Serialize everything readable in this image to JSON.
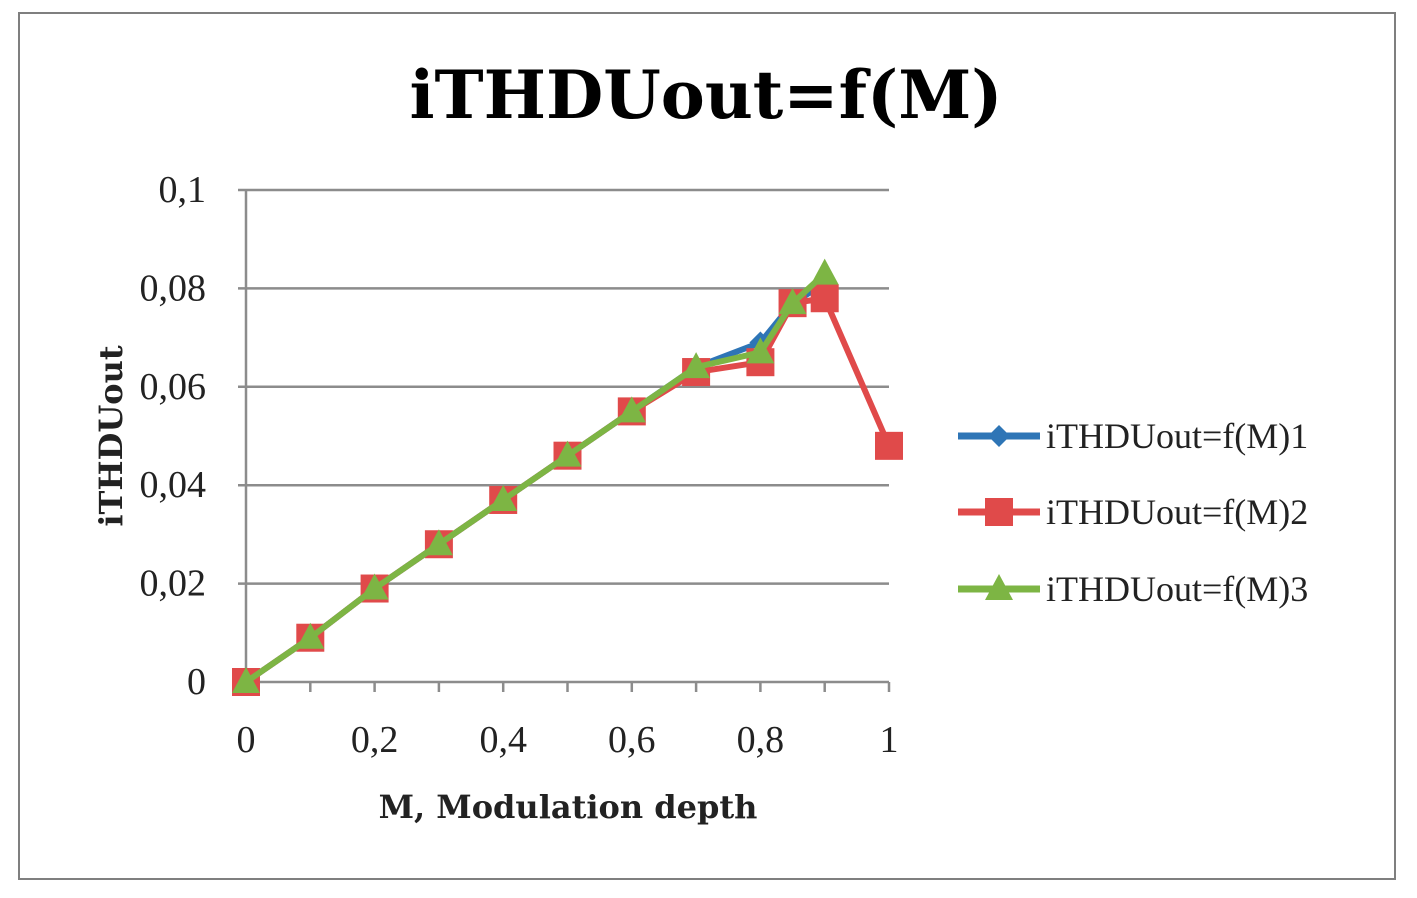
{
  "chart_data": {
    "type": "line",
    "title": "iTHDUout=f(M)",
    "xlabel": "M, Modulation depth",
    "ylabel": "iTHDUout",
    "xlim": [
      0,
      1
    ],
    "ylim": [
      0,
      0.1
    ],
    "xticks": [
      {
        "value": 0,
        "label": "0"
      },
      {
        "value": 0.2,
        "label": "0,2"
      },
      {
        "value": 0.4,
        "label": "0,4"
      },
      {
        "value": 0.6,
        "label": "0,6"
      },
      {
        "value": 0.8,
        "label": "0,8"
      },
      {
        "value": 1,
        "label": "1"
      }
    ],
    "yticks": [
      {
        "value": 0,
        "label": "0"
      },
      {
        "value": 0.02,
        "label": "0,02"
      },
      {
        "value": 0.04,
        "label": "0,04"
      },
      {
        "value": 0.06,
        "label": "0,06"
      },
      {
        "value": 0.08,
        "label": "0,08"
      },
      {
        "value": 0.1,
        "label": "0,1"
      }
    ],
    "grid": "horizontal",
    "legend_position": "right",
    "series": [
      {
        "name": "iTHDUout=f(M)1",
        "color": "#2e75b6",
        "marker": "diamond",
        "x": [
          0,
          0.1,
          0.2,
          0.3,
          0.4,
          0.5,
          0.6,
          0.7,
          0.8,
          0.85,
          0.9
        ],
        "y": [
          0,
          0.009,
          0.019,
          0.028,
          0.037,
          0.046,
          0.055,
          0.064,
          0.069,
          0.077,
          0.081
        ]
      },
      {
        "name": "iTHDUout=f(M)2",
        "color": "#e04a4a",
        "marker": "square",
        "x": [
          0,
          0.1,
          0.2,
          0.3,
          0.4,
          0.5,
          0.6,
          0.7,
          0.8,
          0.85,
          0.9,
          1
        ],
        "y": [
          0,
          0.009,
          0.019,
          0.028,
          0.037,
          0.046,
          0.055,
          0.063,
          0.065,
          0.077,
          0.078,
          0.048
        ]
      },
      {
        "name": "iTHDUout=f(M)3",
        "color": "#7db544",
        "marker": "triangle",
        "x": [
          0,
          0.1,
          0.2,
          0.3,
          0.4,
          0.5,
          0.6,
          0.7,
          0.8,
          0.85,
          0.9
        ],
        "y": [
          0,
          0.009,
          0.019,
          0.028,
          0.037,
          0.046,
          0.055,
          0.064,
          0.067,
          0.077,
          0.083
        ]
      }
    ]
  }
}
